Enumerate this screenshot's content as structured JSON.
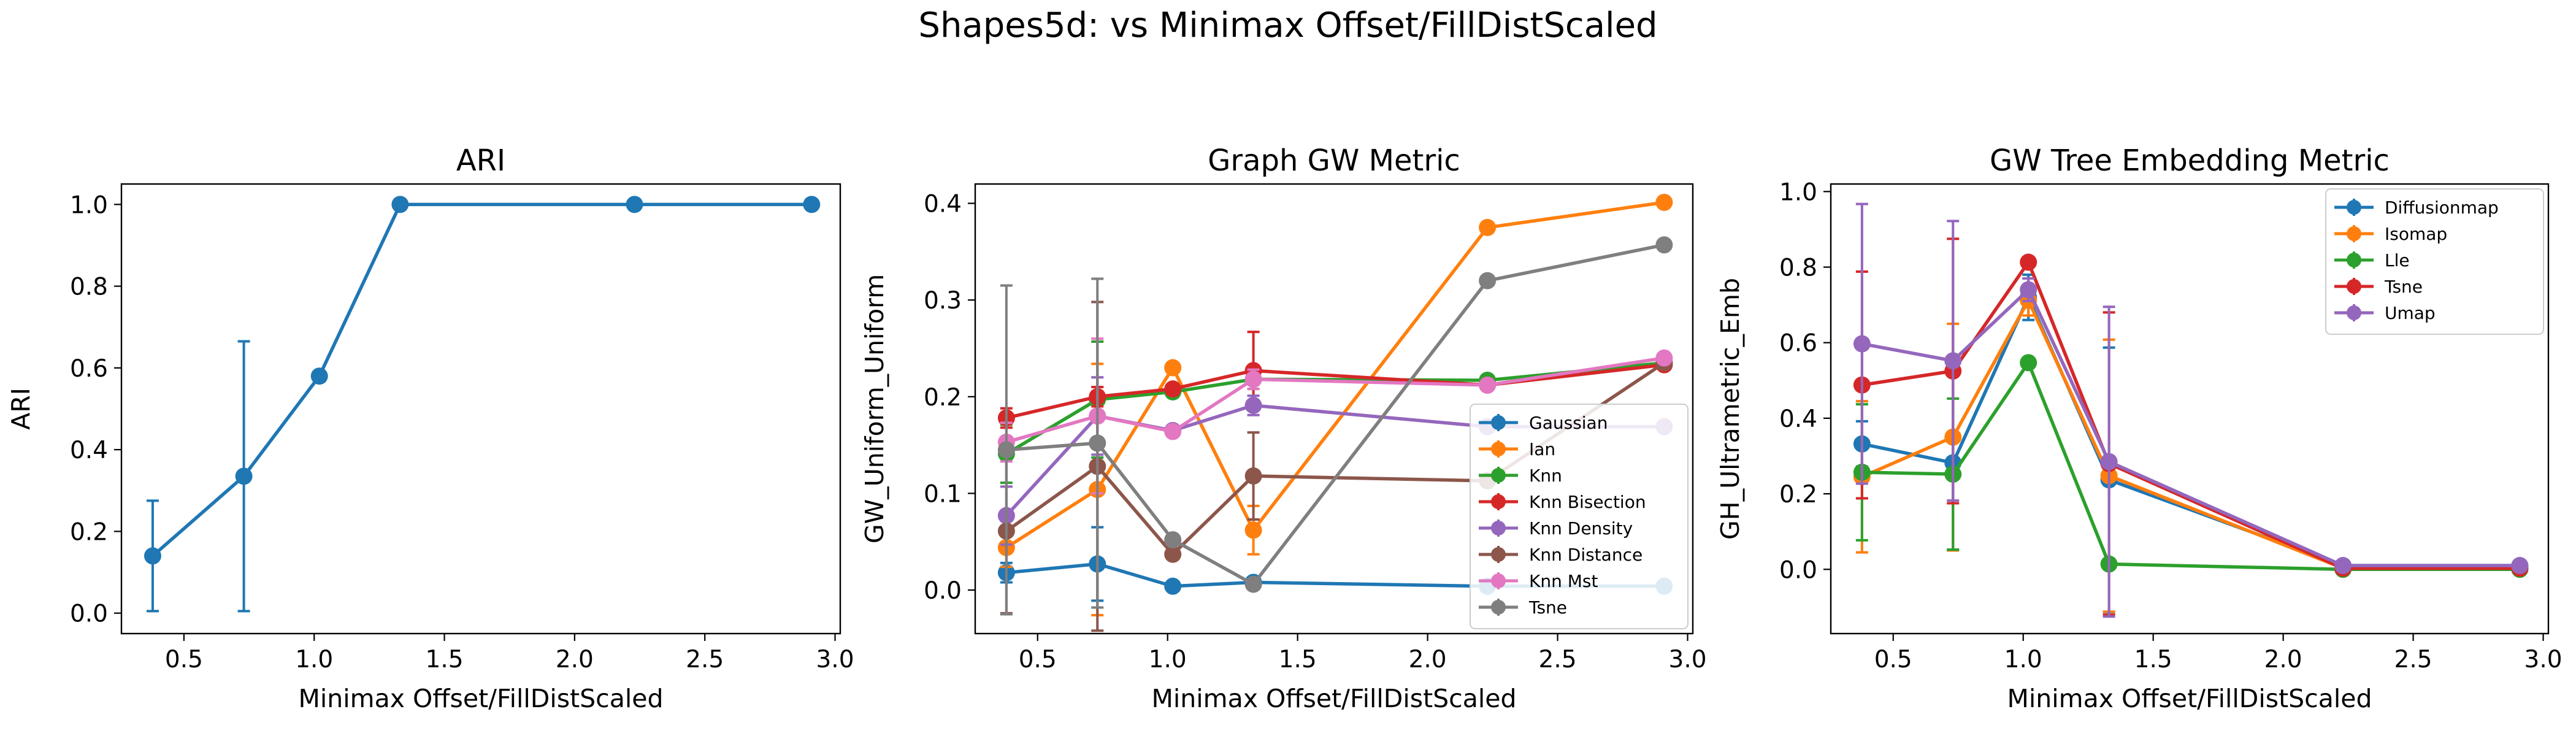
{
  "figure_title": "Shapes5d: vs Minimax Offset/FillDistScaled",
  "chart_data": [
    {
      "type": "line",
      "title": "ARI",
      "xlabel": "Minimax Offset/FillDistScaled",
      "ylabel": "ARI",
      "xlim": [
        0.26,
        3.02
      ],
      "ylim": [
        -0.05,
        1.05
      ],
      "xticks": [
        0.5,
        1.0,
        1.5,
        2.0,
        2.5,
        3.0
      ],
      "xtick_labels": [
        "0.5",
        "1.0",
        "1.5",
        "2.0",
        "2.5",
        "3.0"
      ],
      "yticks": [
        0.0,
        0.2,
        0.4,
        0.6,
        0.8,
        1.0
      ],
      "ytick_labels": [
        "0.0",
        "0.2",
        "0.4",
        "0.6",
        "0.8",
        "1.0"
      ],
      "legend": null,
      "x": [
        0.38,
        0.73,
        1.02,
        1.33,
        2.23,
        2.91
      ],
      "series": [
        {
          "name": "",
          "color": "#1f77b4",
          "values": [
            0.14,
            0.335,
            0.58,
            1.0,
            1.0,
            1.0
          ],
          "err": [
            0.135,
            0.33,
            0,
            0,
            0,
            0
          ]
        }
      ]
    },
    {
      "type": "line",
      "title": "Graph GW Metric",
      "xlabel": "Minimax Offset/FillDistScaled",
      "ylabel": "GW_Uniform_Uniform",
      "xlim": [
        0.26,
        3.02
      ],
      "ylim": [
        -0.045,
        0.42
      ],
      "xticks": [
        0.5,
        1.0,
        1.5,
        2.0,
        2.5,
        3.0
      ],
      "xtick_labels": [
        "0.5",
        "1.0",
        "1.5",
        "2.0",
        "2.5",
        "3.0"
      ],
      "yticks": [
        0.0,
        0.1,
        0.2,
        0.3,
        0.4
      ],
      "ytick_labels": [
        "0.0",
        "0.1",
        "0.2",
        "0.3",
        "0.4"
      ],
      "legend": "lower-right",
      "x": [
        0.38,
        0.73,
        1.02,
        1.33,
        2.23,
        2.91
      ],
      "series": [
        {
          "name": "Gaussian",
          "color": "#1f77b4",
          "values": [
            0.018,
            0.027,
            0.004,
            0.008,
            0.004,
            0.004
          ],
          "err": [
            0.01,
            0.038,
            0,
            0.005,
            0,
            0
          ]
        },
        {
          "name": "Ian",
          "color": "#ff7f0e",
          "values": [
            0.044,
            0.104,
            0.23,
            0.062,
            0.375,
            0.401
          ],
          "err": [
            0.02,
            0.13,
            0,
            0.025,
            0,
            0
          ]
        },
        {
          "name": "Knn",
          "color": "#2ca02c",
          "values": [
            0.141,
            0.197,
            0.205,
            0.218,
            0.217,
            0.235
          ],
          "err": [
            0.03,
            0.06,
            0,
            0.01,
            0,
            0
          ]
        },
        {
          "name": "Knn Bisection",
          "color": "#d62728",
          "values": [
            0.178,
            0.2,
            0.208,
            0.227,
            0.212,
            0.233
          ],
          "err": [
            0.01,
            0.01,
            0,
            0.04,
            0,
            0
          ]
        },
        {
          "name": "Knn Density",
          "color": "#9467bd",
          "values": [
            0.077,
            0.18,
            0.165,
            0.191,
            0.169,
            0.169
          ],
          "err": [
            0.03,
            0.04,
            0,
            0.01,
            0,
            0
          ]
        },
        {
          "name": "Knn Distance",
          "color": "#8c564b",
          "values": [
            0.061,
            0.128,
            0.037,
            0.118,
            0.113,
            0.235
          ],
          "err": [
            0.085,
            0.17,
            0,
            0.045,
            0,
            0
          ]
        },
        {
          "name": "Knn Mst",
          "color": "#e377c2",
          "values": [
            0.153,
            0.18,
            0.164,
            0.218,
            0.212,
            0.24
          ],
          "err": [
            0.02,
            0.08,
            0,
            0.01,
            0,
            0
          ]
        },
        {
          "name": "Tsne",
          "color": "#7f7f7f",
          "values": [
            0.145,
            0.152,
            0.052,
            0.006,
            0.32,
            0.357
          ],
          "err": [
            0.17,
            0.17,
            0,
            0,
            0,
            0
          ]
        }
      ]
    },
    {
      "type": "line",
      "title": "GW Tree Embedding Metric",
      "xlabel": "Minimax Offset/FillDistScaled",
      "ylabel": "GH_Ultrametric_Emb",
      "xlim": [
        0.26,
        3.02
      ],
      "ylim": [
        -0.17,
        1.02
      ],
      "xticks": [
        0.5,
        1.0,
        1.5,
        2.0,
        2.5,
        3.0
      ],
      "xtick_labels": [
        "0.5",
        "1.0",
        "1.5",
        "2.0",
        "2.5",
        "3.0"
      ],
      "yticks": [
        0.0,
        0.2,
        0.4,
        0.6,
        0.8,
        1.0
      ],
      "ytick_labels": [
        "0.0",
        "0.2",
        "0.4",
        "0.6",
        "0.8",
        "1.0"
      ],
      "legend": "upper-right",
      "x": [
        0.38,
        0.73,
        1.02,
        1.33,
        2.23,
        2.91
      ],
      "series": [
        {
          "name": "Diffusionmap",
          "color": "#1f77b4",
          "values": [
            0.332,
            0.282,
            0.72,
            0.237,
            0.01,
            0.01
          ],
          "err": [
            0.06,
            0.23,
            0.06,
            0.35,
            0,
            0
          ]
        },
        {
          "name": "Isomap",
          "color": "#ff7f0e",
          "values": [
            0.245,
            0.35,
            0.712,
            0.248,
            0.003,
            0.003
          ],
          "err": [
            0.2,
            0.3,
            0.04,
            0.36,
            0,
            0
          ]
        },
        {
          "name": "Lle",
          "color": "#2ca02c",
          "values": [
            0.257,
            0.252,
            0.547,
            0.014,
            0.0,
            0.0
          ],
          "err": [
            0.18,
            0.2,
            0,
            0,
            0,
            0
          ]
        },
        {
          "name": "Tsne",
          "color": "#d62728",
          "values": [
            0.488,
            0.525,
            0.813,
            0.28,
            0.003,
            0.003
          ],
          "err": [
            0.3,
            0.35,
            0,
            0.4,
            0,
            0
          ]
        },
        {
          "name": "Umap",
          "color": "#9467bd",
          "values": [
            0.597,
            0.552,
            0.74,
            0.285,
            0.01,
            0.01
          ],
          "err": [
            0.37,
            0.37,
            0.03,
            0.41,
            0,
            0
          ]
        }
      ]
    }
  ]
}
